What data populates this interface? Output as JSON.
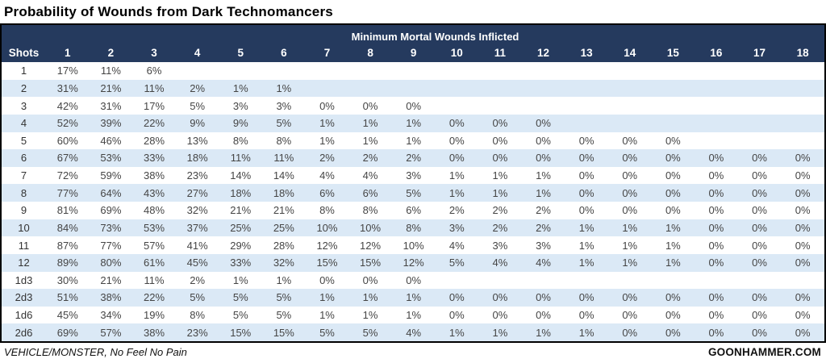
{
  "colors": {
    "header_bg": "#253A5E",
    "row_alt": "#DBE9F6",
    "border": "#000000"
  },
  "footer": {
    "footnote": "VEHICLE/MONSTER, No Feel No Pain",
    "source": "GOONHAMMER.COM"
  },
  "chart_data": {
    "type": "table",
    "title": "Probability of Wounds from Dark Technomancers",
    "column_group_label": "Minimum Mortal Wounds Inflicted",
    "row_header": "Shots",
    "columns": [
      "1",
      "2",
      "3",
      "4",
      "5",
      "6",
      "7",
      "8",
      "9",
      "10",
      "11",
      "12",
      "13",
      "14",
      "15",
      "16",
      "17",
      "18"
    ],
    "rows": [
      {
        "label": "1",
        "values": [
          "17%",
          "11%",
          "6%",
          "",
          "",
          "",
          "",
          "",
          "",
          "",
          "",
          "",
          "",
          "",
          "",
          "",
          "",
          ""
        ]
      },
      {
        "label": "2",
        "values": [
          "31%",
          "21%",
          "11%",
          "2%",
          "1%",
          "1%",
          "",
          "",
          "",
          "",
          "",
          "",
          "",
          "",
          "",
          "",
          "",
          ""
        ]
      },
      {
        "label": "3",
        "values": [
          "42%",
          "31%",
          "17%",
          "5%",
          "3%",
          "3%",
          "0%",
          "0%",
          "0%",
          "",
          "",
          "",
          "",
          "",
          "",
          "",
          "",
          ""
        ]
      },
      {
        "label": "4",
        "values": [
          "52%",
          "39%",
          "22%",
          "9%",
          "9%",
          "5%",
          "1%",
          "1%",
          "1%",
          "0%",
          "0%",
          "0%",
          "",
          "",
          "",
          "",
          "",
          ""
        ]
      },
      {
        "label": "5",
        "values": [
          "60%",
          "46%",
          "28%",
          "13%",
          "8%",
          "8%",
          "1%",
          "1%",
          "1%",
          "0%",
          "0%",
          "0%",
          "0%",
          "0%",
          "0%",
          "",
          "",
          ""
        ]
      },
      {
        "label": "6",
        "values": [
          "67%",
          "53%",
          "33%",
          "18%",
          "11%",
          "11%",
          "2%",
          "2%",
          "2%",
          "0%",
          "0%",
          "0%",
          "0%",
          "0%",
          "0%",
          "0%",
          "0%",
          "0%"
        ]
      },
      {
        "label": "7",
        "values": [
          "72%",
          "59%",
          "38%",
          "23%",
          "14%",
          "14%",
          "4%",
          "4%",
          "3%",
          "1%",
          "1%",
          "1%",
          "0%",
          "0%",
          "0%",
          "0%",
          "0%",
          "0%"
        ]
      },
      {
        "label": "8",
        "values": [
          "77%",
          "64%",
          "43%",
          "27%",
          "18%",
          "18%",
          "6%",
          "6%",
          "5%",
          "1%",
          "1%",
          "1%",
          "0%",
          "0%",
          "0%",
          "0%",
          "0%",
          "0%"
        ]
      },
      {
        "label": "9",
        "values": [
          "81%",
          "69%",
          "48%",
          "32%",
          "21%",
          "21%",
          "8%",
          "8%",
          "6%",
          "2%",
          "2%",
          "2%",
          "0%",
          "0%",
          "0%",
          "0%",
          "0%",
          "0%"
        ]
      },
      {
        "label": "10",
        "values": [
          "84%",
          "73%",
          "53%",
          "37%",
          "25%",
          "25%",
          "10%",
          "10%",
          "8%",
          "3%",
          "2%",
          "2%",
          "1%",
          "1%",
          "1%",
          "0%",
          "0%",
          "0%"
        ]
      },
      {
        "label": "11",
        "values": [
          "87%",
          "77%",
          "57%",
          "41%",
          "29%",
          "28%",
          "12%",
          "12%",
          "10%",
          "4%",
          "3%",
          "3%",
          "1%",
          "1%",
          "1%",
          "0%",
          "0%",
          "0%"
        ]
      },
      {
        "label": "12",
        "values": [
          "89%",
          "80%",
          "61%",
          "45%",
          "33%",
          "32%",
          "15%",
          "15%",
          "12%",
          "5%",
          "4%",
          "4%",
          "1%",
          "1%",
          "1%",
          "0%",
          "0%",
          "0%"
        ]
      },
      {
        "label": "1d3",
        "values": [
          "30%",
          "21%",
          "11%",
          "2%",
          "1%",
          "1%",
          "0%",
          "0%",
          "0%",
          "",
          "",
          "",
          "",
          "",
          "",
          "",
          "",
          ""
        ]
      },
      {
        "label": "2d3",
        "values": [
          "51%",
          "38%",
          "22%",
          "5%",
          "5%",
          "5%",
          "1%",
          "1%",
          "1%",
          "0%",
          "0%",
          "0%",
          "0%",
          "0%",
          "0%",
          "0%",
          "0%",
          "0%"
        ]
      },
      {
        "label": "1d6",
        "values": [
          "45%",
          "34%",
          "19%",
          "8%",
          "5%",
          "5%",
          "1%",
          "1%",
          "1%",
          "0%",
          "0%",
          "0%",
          "0%",
          "0%",
          "0%",
          "0%",
          "0%",
          "0%"
        ]
      },
      {
        "label": "2d6",
        "values": [
          "69%",
          "57%",
          "38%",
          "23%",
          "15%",
          "15%",
          "5%",
          "5%",
          "4%",
          "1%",
          "1%",
          "1%",
          "1%",
          "0%",
          "0%",
          "0%",
          "0%",
          "0%"
        ]
      }
    ],
    "footnote": "VEHICLE/MONSTER, No Feel No Pain",
    "source": "GOONHAMMER.COM"
  }
}
